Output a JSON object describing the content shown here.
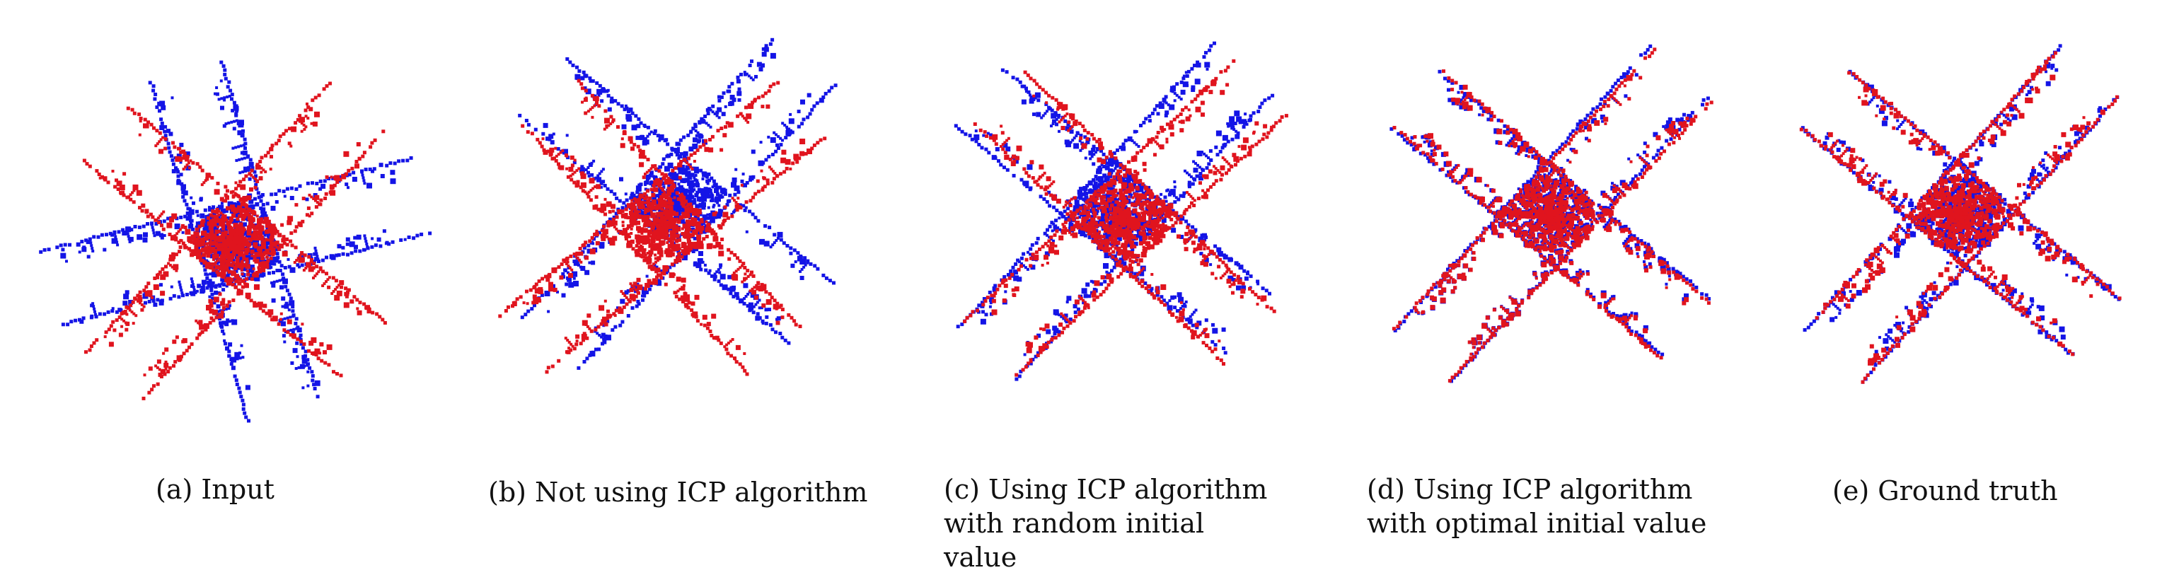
{
  "colors": {
    "source": "#e0141e",
    "target": "#1414e6",
    "background": "#ffffff",
    "caption_text": "#111111"
  },
  "panels": [
    {
      "id": "a",
      "caption_lines": [
        "(a) Input"
      ]
    },
    {
      "id": "b",
      "caption_lines": [
        "(b) Not using ICP algorithm"
      ]
    },
    {
      "id": "c",
      "caption_lines": [
        "(c) Using ICP algorithm",
        "with random initial",
        "value"
      ]
    },
    {
      "id": "d",
      "caption_lines": [
        "(d) Using ICP algorithm",
        "with optimal initial value"
      ]
    },
    {
      "id": "e",
      "caption_lines": [
        "(e) Ground truth"
      ]
    }
  ]
}
